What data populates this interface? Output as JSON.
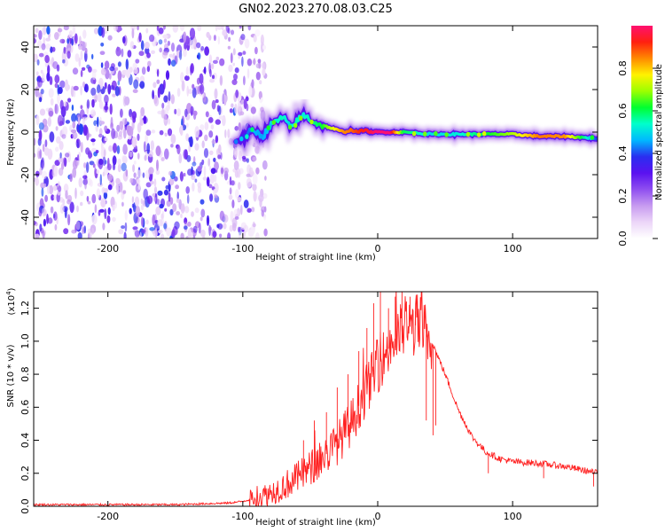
{
  "title": "GN02.2023.270.08.03.C25",
  "colorbar": {
    "label": "Normalized spectral amplitude",
    "ticks": [
      "0.0",
      "0.2",
      "0.4",
      "0.6",
      "0.8"
    ],
    "tick_values": [
      0.0,
      0.2,
      0.4,
      0.6,
      0.8
    ],
    "range": [
      0,
      1
    ],
    "colormap": [
      "#ffffff",
      "#ecd6f8",
      "#c79bf0",
      "#8f4ff0",
      "#5a12f0",
      "#2a2ef0",
      "#00b8ff",
      "#00ffcc",
      "#00ff30",
      "#9cff00",
      "#fff200",
      "#ff8a00",
      "#ff2010",
      "#ff1070"
    ]
  },
  "chart_data": [
    {
      "type": "heatmap",
      "name": "spectrogram",
      "title": "GN02.2023.270.08.03.C25",
      "xlabel": "Height of straight line (km)",
      "ylabel": "Frequency (Hz)",
      "xlim": [
        -255,
        163
      ],
      "ylim": [
        -50,
        50
      ],
      "xticks": [
        -200,
        -100,
        0,
        100
      ],
      "yticks": [
        -40,
        -20,
        0,
        20,
        40
      ],
      "noise_region_x": [
        -255,
        -95
      ],
      "ridge": {
        "x": [
          -105,
          -100,
          -95,
          -90,
          -85,
          -80,
          -75,
          -70,
          -65,
          -60,
          -55,
          -50,
          -45,
          -40,
          -35,
          -30,
          -25,
          -20,
          -15,
          -10,
          -5,
          0,
          10,
          20,
          40,
          60,
          80,
          100,
          120,
          140,
          163
        ],
        "y": [
          -4,
          -3,
          0,
          0,
          -2,
          3,
          5,
          7,
          2,
          5,
          8,
          6,
          4,
          3,
          2,
          1,
          0,
          1,
          0,
          1,
          0,
          0,
          0,
          0,
          -1,
          -1,
          -1,
          -1,
          -2,
          -2,
          -3
        ],
        "amplitude": [
          0.28,
          0.34,
          0.42,
          0.46,
          0.45,
          0.48,
          0.52,
          0.55,
          0.5,
          0.55,
          0.52,
          0.55,
          0.58,
          0.62,
          0.7,
          0.78,
          0.84,
          0.86,
          0.9,
          0.93,
          0.96,
          1.0,
          1.0,
          0.6,
          0.5,
          0.52,
          0.6,
          0.7,
          0.86,
          0.84,
          0.4
        ]
      }
    },
    {
      "type": "line",
      "name": "snr",
      "xlabel": "Height of straight line (km)",
      "ylabel": "SNR (10 * v/v)",
      "y_multiplier": "(x10",
      "y_multiplier_exp": "4",
      "y_multiplier_close": ")",
      "xlim": [
        -255,
        163
      ],
      "ylim": [
        0,
        1.3
      ],
      "xticks": [
        -200,
        -100,
        0,
        100
      ],
      "yticks": [
        0.0,
        0.2,
        0.4,
        0.6,
        0.8,
        1.0,
        1.2
      ],
      "ytick_labels": [
        "0.0",
        "0.2",
        "0.4",
        "0.6",
        "0.8",
        "1.0",
        "1.2"
      ],
      "line_color": "#ff2020",
      "envelope": {
        "x": [
          -255,
          -200,
          -150,
          -110,
          -100,
          -90,
          -80,
          -70,
          -60,
          -50,
          -40,
          -30,
          -20,
          -10,
          0,
          10,
          20,
          30,
          40,
          50,
          60,
          70,
          80,
          90,
          100,
          120,
          140,
          163
        ],
        "y": [
          0.01,
          0.01,
          0.01,
          0.02,
          0.03,
          0.05,
          0.08,
          0.12,
          0.17,
          0.23,
          0.3,
          0.38,
          0.5,
          0.68,
          0.85,
          0.98,
          1.08,
          1.1,
          1.0,
          0.8,
          0.58,
          0.42,
          0.33,
          0.29,
          0.27,
          0.26,
          0.24,
          0.2
        ]
      },
      "spikes": [
        {
          "x": -55,
          "y": 0.4
        },
        {
          "x": -47,
          "y": 0.52
        },
        {
          "x": -38,
          "y": 0.57
        },
        {
          "x": -30,
          "y": 0.72
        },
        {
          "x": -22,
          "y": 0.8
        },
        {
          "x": -14,
          "y": 0.94
        },
        {
          "x": -8,
          "y": 1.08
        },
        {
          "x": -3,
          "y": 1.23
        },
        {
          "x": 2,
          "y": 1.3
        },
        {
          "x": 8,
          "y": 1.2
        },
        {
          "x": 13,
          "y": 1.27
        },
        {
          "x": 18,
          "y": 1.3
        },
        {
          "x": 24,
          "y": 1.27
        },
        {
          "x": 28,
          "y": 1.18
        }
      ],
      "dips": [
        {
          "x": 36,
          "y": 0.52
        },
        {
          "x": 41,
          "y": 0.43
        },
        {
          "x": 43,
          "y": 0.49
        },
        {
          "x": 82,
          "y": 0.2
        },
        {
          "x": 123,
          "y": 0.17
        },
        {
          "x": 160,
          "y": 0.12
        }
      ]
    }
  ]
}
